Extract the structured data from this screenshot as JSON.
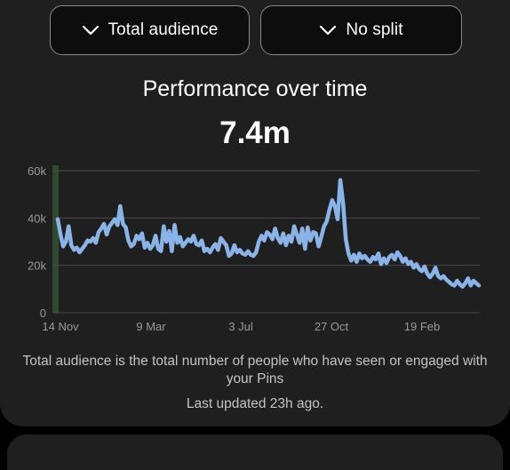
{
  "filters": {
    "audience_label": "Total audience",
    "split_label": "No split"
  },
  "header": {
    "title": "Performance over time",
    "total": "7.4m"
  },
  "chart_data": {
    "type": "line",
    "title": "",
    "xlabel": "",
    "ylabel": "",
    "ylim": [
      0,
      60000
    ],
    "yticks": [
      {
        "value": 0,
        "label": "0"
      },
      {
        "value": 20000,
        "label": "20k"
      },
      {
        "value": 40000,
        "label": "40k"
      },
      {
        "value": 60000,
        "label": "60k"
      }
    ],
    "xticks": [
      "14 Nov",
      "9 Mar",
      "3 Jul",
      "27 Oct",
      "19 Feb"
    ],
    "grid": true,
    "line_color": "#8ab4e8",
    "highlight_color": "#2f4a2f",
    "series": [
      {
        "values": [
          39500,
          33000,
          28000,
          30000,
          36500,
          28500,
          26500,
          27500,
          25500,
          27000,
          28500,
          30500,
          30000,
          31500,
          29500,
          34000,
          35500,
          37500,
          33000,
          36500,
          38000,
          39500,
          37000,
          45000,
          37500,
          36000,
          30500,
          28000,
          29000,
          32500,
          31000,
          33500,
          27500,
          29500,
          27000,
          28500,
          32500,
          27000,
          26000,
          36500,
          30000,
          34500,
          26000,
          37000,
          29500,
          32000,
          28000,
          29500,
          31000,
          30000,
          32500,
          29000,
          28500,
          30500,
          26000,
          27000,
          25500,
          27500,
          29000,
          26500,
          31500,
          30000,
          28500,
          24000,
          25000,
          28500,
          25500,
          26500,
          25000,
          24500,
          26000,
          24500,
          24000,
          25500,
          30000,
          32500,
          30500,
          34000,
          33000,
          31000,
          35500,
          31500,
          29500,
          33500,
          28500,
          32500,
          30000,
          36500,
          33000,
          29500,
          35500,
          27000,
          36000,
          30500,
          34000,
          33500,
          28000,
          32000,
          36500,
          38500,
          43500,
          47500,
          45000,
          39500,
          56000,
          46500,
          31000,
          25000,
          22000,
          24500,
          21500,
          25000,
          23000,
          24000,
          22500,
          21500,
          23500,
          22500,
          25000,
          20500,
          23000,
          21000,
          23500,
          24500,
          22500,
          25500,
          24000,
          21500,
          23000,
          20500,
          21500,
          19000,
          20500,
          18500,
          17500,
          19500,
          16500,
          15000,
          16500,
          19000,
          15500,
          14500,
          15500,
          14000,
          13000,
          12000,
          11500,
          13500,
          12000,
          11000,
          12500,
          14500,
          11500,
          13500,
          12500,
          11500
        ]
      }
    ]
  },
  "footer": {
    "description": "Total audience is the total number of people who have seen or engaged with your Pins",
    "last_updated": "Last updated 23h ago."
  }
}
